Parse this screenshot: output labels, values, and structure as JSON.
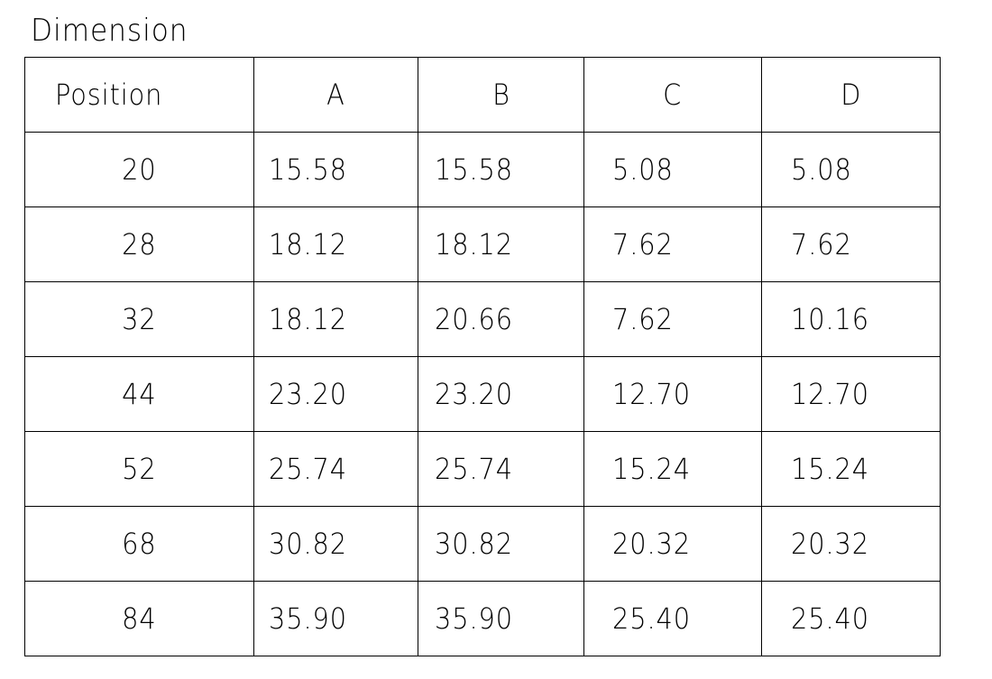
{
  "title": "Dimension",
  "table": {
    "headers": [
      "Position",
      "A",
      "B",
      "C",
      "D"
    ],
    "rows": [
      [
        "20",
        "15.58",
        "15.58",
        "5.08",
        "5.08"
      ],
      [
        "28",
        "18.12",
        "18.12",
        "7.62",
        "7.62"
      ],
      [
        "32",
        "18.12",
        "20.66",
        "7.62",
        "10.16"
      ],
      [
        "44",
        "23.20",
        "23.20",
        "12.70",
        "12.70"
      ],
      [
        "52",
        "25.74",
        "25.74",
        "15.24",
        "15.24"
      ],
      [
        "68",
        "30.82",
        "30.82",
        "20.32",
        "20.32"
      ],
      [
        "84",
        "35.90",
        "35.90",
        "25.40",
        "25.40"
      ]
    ]
  }
}
